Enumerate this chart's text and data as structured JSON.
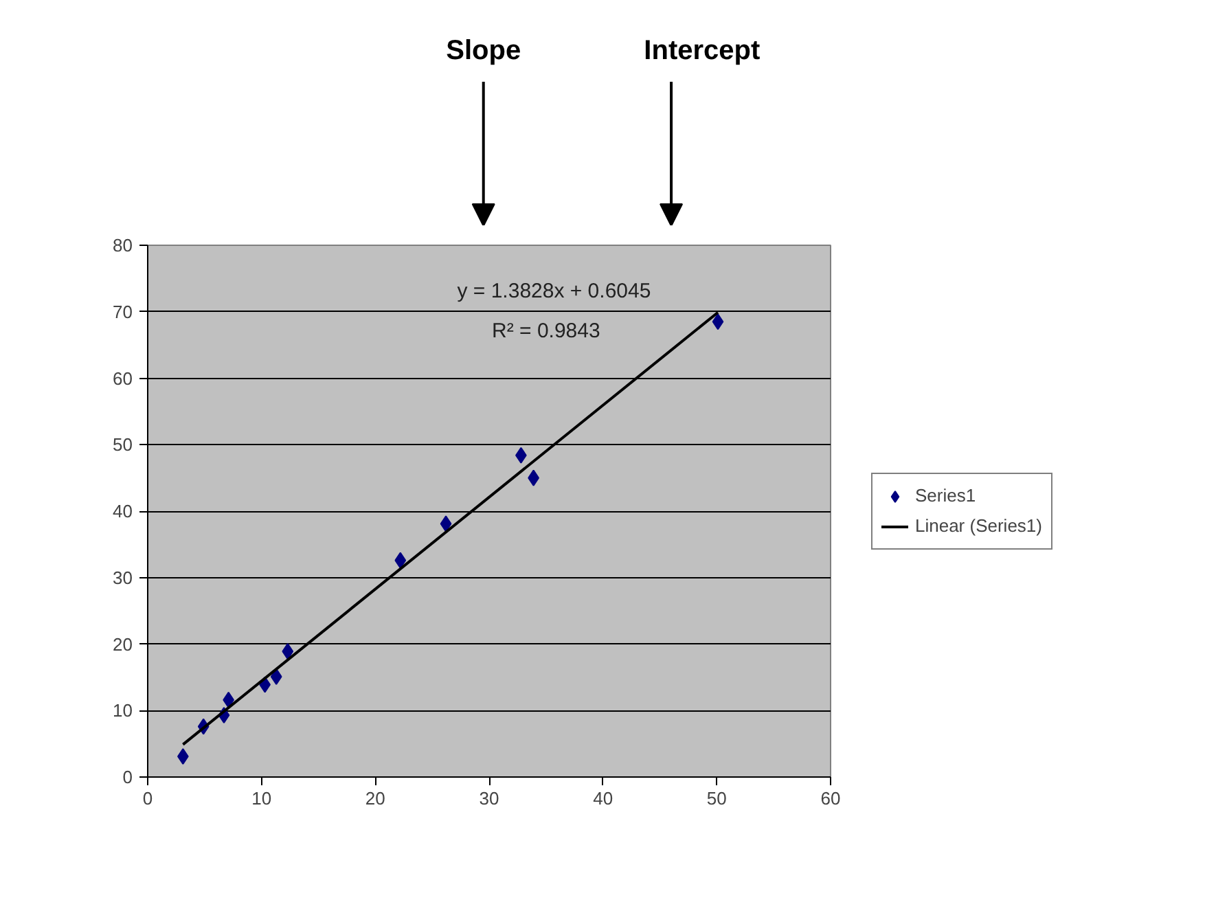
{
  "chart_data": {
    "type": "scatter",
    "series": [
      {
        "name": "Series1",
        "marker": "diamond",
        "color": "#000080",
        "x": [
          3.1,
          4.9,
          6.7,
          7.1,
          10.3,
          11.3,
          12.3,
          22.2,
          26.2,
          32.8,
          33.9,
          50.1
        ],
        "values": [
          3.1,
          7.6,
          9.3,
          11.6,
          13.9,
          15.1,
          18.9,
          32.6,
          38.1,
          48.4,
          45.0,
          68.5
        ]
      },
      {
        "name": "Linear (Series1)",
        "type": "line",
        "color": "#000000",
        "x": [
          3.1,
          50.1
        ],
        "values": [
          4.9,
          69.9
        ]
      }
    ],
    "annotations": [
      "Slope",
      "Intercept",
      "y = 1.3828x + 0.6045",
      "R² = 0.9843"
    ],
    "xlim": [
      0,
      60
    ],
    "xticks": [
      0,
      10,
      20,
      30,
      40,
      50,
      60
    ],
    "ylim": [
      0,
      80
    ],
    "yticks": [
      0,
      10,
      20,
      30,
      40,
      50,
      60,
      70,
      80
    ],
    "grid": "y",
    "legend": "right"
  }
}
